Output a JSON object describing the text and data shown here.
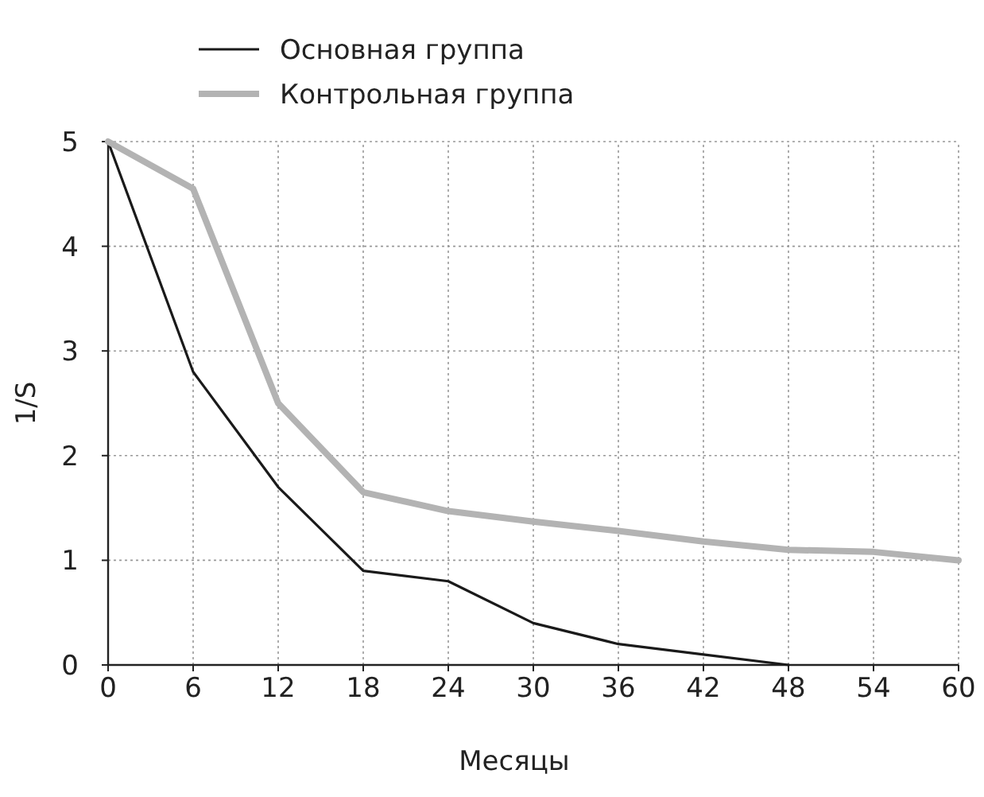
{
  "chart_data": {
    "type": "line",
    "xlabel": "Месяцы",
    "ylabel": "1/S",
    "x": [
      0,
      6,
      12,
      18,
      24,
      30,
      36,
      42,
      48,
      54,
      60
    ],
    "xlim": [
      0,
      60
    ],
    "xticks": [
      0,
      6,
      12,
      18,
      24,
      30,
      36,
      42,
      48,
      54,
      60
    ],
    "ylim": [
      0,
      5
    ],
    "yticks": [
      0,
      1,
      2,
      3,
      4,
      5
    ],
    "grid": true,
    "legend": "top left",
    "marker": "none",
    "line_style": "solid",
    "series": [
      {
        "name": "Основная группа",
        "color": "#1a1a1a",
        "values": [
          5,
          2.8,
          1.7,
          0.9,
          0.8,
          0.4,
          0.2,
          0.1,
          0,
          null,
          null
        ]
      },
      {
        "name": "Контрольная группа",
        "color": "#b3b3b3",
        "values": [
          5,
          4.55,
          2.5,
          1.65,
          1.47,
          1.37,
          1.28,
          1.18,
          1.1,
          1.08,
          1.0
        ]
      }
    ]
  }
}
